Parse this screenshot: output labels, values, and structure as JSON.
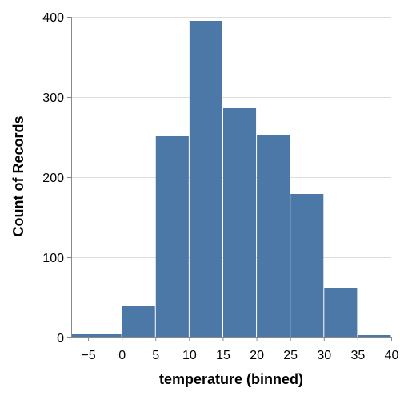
{
  "chart_data": {
    "type": "bar",
    "xlabel": "temperature (binned)",
    "ylabel": "Count of Records",
    "x_ticks": [
      "−5",
      "0",
      "5",
      "10",
      "15",
      "20",
      "25",
      "30",
      "35",
      "40"
    ],
    "x_tick_values": [
      -5,
      0,
      5,
      10,
      15,
      20,
      25,
      30,
      35,
      40
    ],
    "y_ticks": [
      "0",
      "100",
      "200",
      "300",
      "400"
    ],
    "y_tick_values": [
      0,
      100,
      200,
      300,
      400
    ],
    "xlim": [
      -7.5,
      40
    ],
    "ylim": [
      0,
      400
    ],
    "grid": true,
    "bins": [
      {
        "start": -7.5,
        "end": 0,
        "count": 4
      },
      {
        "start": 0,
        "end": 5,
        "count": 39
      },
      {
        "start": 5,
        "end": 10,
        "count": 251
      },
      {
        "start": 10,
        "end": 15,
        "count": 395
      },
      {
        "start": 15,
        "end": 20,
        "count": 286
      },
      {
        "start": 20,
        "end": 25,
        "count": 252
      },
      {
        "start": 25,
        "end": 30,
        "count": 179
      },
      {
        "start": 30,
        "end": 35,
        "count": 62
      },
      {
        "start": 35,
        "end": 40,
        "count": 3
      }
    ],
    "bar_color": "#4c78a8",
    "grid_color": "#dddddd",
    "axis_color": "#888888"
  }
}
